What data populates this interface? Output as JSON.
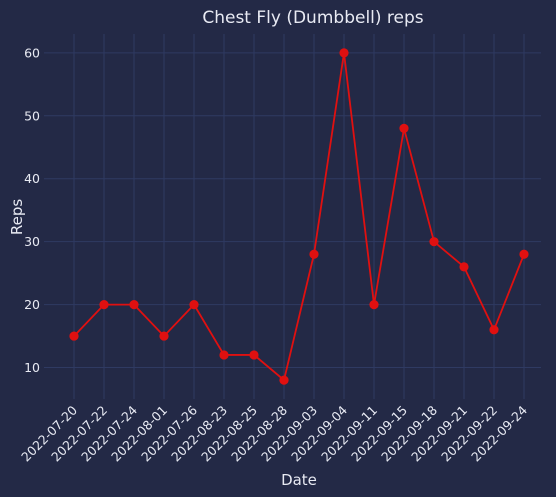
{
  "chart_data": {
    "type": "line",
    "title": "Chest Fly (Dumbbell) reps",
    "xlabel": "Date",
    "ylabel": "Reps",
    "categories": [
      "2022-07-20",
      "2022-07-22",
      "2022-07-24",
      "2022-08-01",
      "2022-07-26",
      "2022-08-23",
      "2022-08-25",
      "2022-08-28",
      "2022-09-03",
      "2022-09-04",
      "2022-09-11",
      "2022-09-15",
      "2022-09-18",
      "2022-09-21",
      "2022-09-22",
      "2022-09-24"
    ],
    "series": [
      {
        "values": [
          15,
          20,
          20,
          15,
          20,
          12,
          12,
          8,
          28,
          60,
          20,
          48,
          30,
          26,
          16,
          28
        ]
      }
    ],
    "ylim": [
      5,
      63
    ],
    "yticks": [
      10,
      20,
      30,
      40,
      50,
      60
    ],
    "grid": true,
    "legend": "none",
    "colors": {
      "background": "#232946",
      "line": "#e01010",
      "grid": "#2f3a62",
      "text": "#e8eaf3"
    }
  }
}
